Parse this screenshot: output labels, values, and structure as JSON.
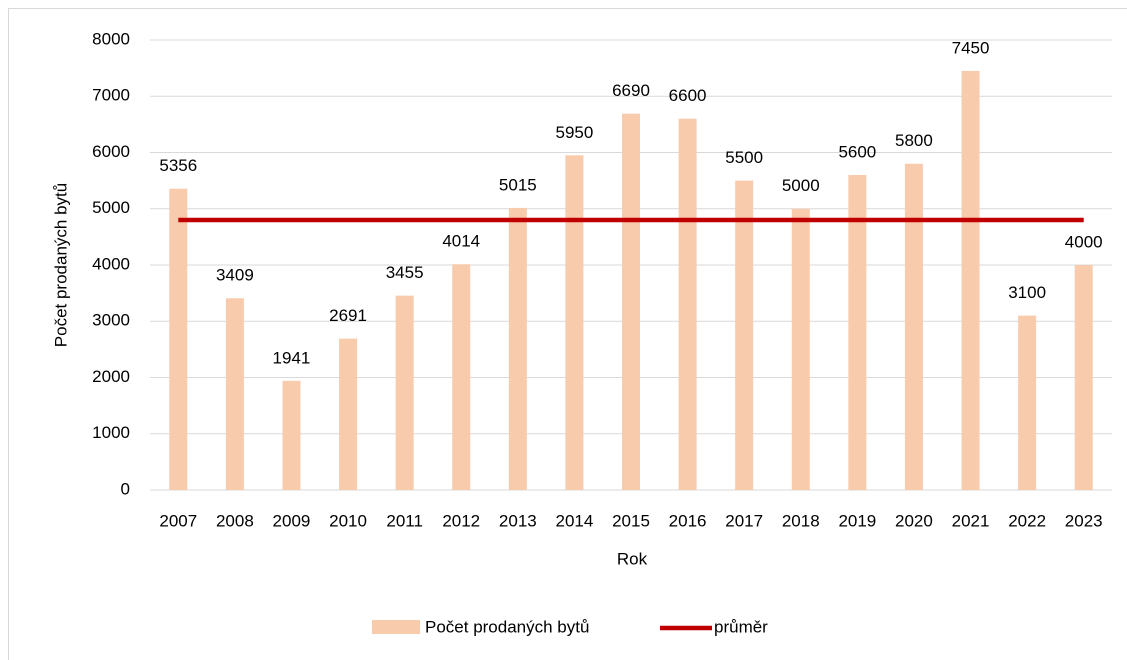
{
  "chart_data": {
    "type": "bar",
    "x_label": "Rok",
    "y_label": "Počet prodaných bytů",
    "categories": [
      "2007",
      "2008",
      "2009",
      "2010",
      "2011",
      "2012",
      "2013",
      "2014",
      "2015",
      "2016",
      "2017",
      "2018",
      "2019",
      "2020",
      "2021",
      "2022",
      "2023"
    ],
    "series": [
      {
        "name": "Počet prodaných bytů",
        "type": "bar",
        "color": "#f8cbad",
        "values": [
          5356,
          3409,
          1941,
          2691,
          3455,
          4014,
          5015,
          5950,
          6690,
          6600,
          5500,
          5000,
          5600,
          5800,
          7450,
          3100,
          4000
        ]
      },
      {
        "name": "průměr",
        "type": "line",
        "color": "#c00000",
        "values": [
          4800,
          4800,
          4800,
          4800,
          4800,
          4800,
          4800,
          4800,
          4800,
          4800,
          4800,
          4800,
          4800,
          4800,
          4800,
          4800,
          4800
        ]
      }
    ],
    "data_labels_series": 0,
    "ylim": [
      0,
      8000
    ],
    "yticks": [
      0,
      1000,
      2000,
      3000,
      4000,
      5000,
      6000,
      7000,
      8000
    ],
    "grid": true,
    "legend": "bottom"
  }
}
